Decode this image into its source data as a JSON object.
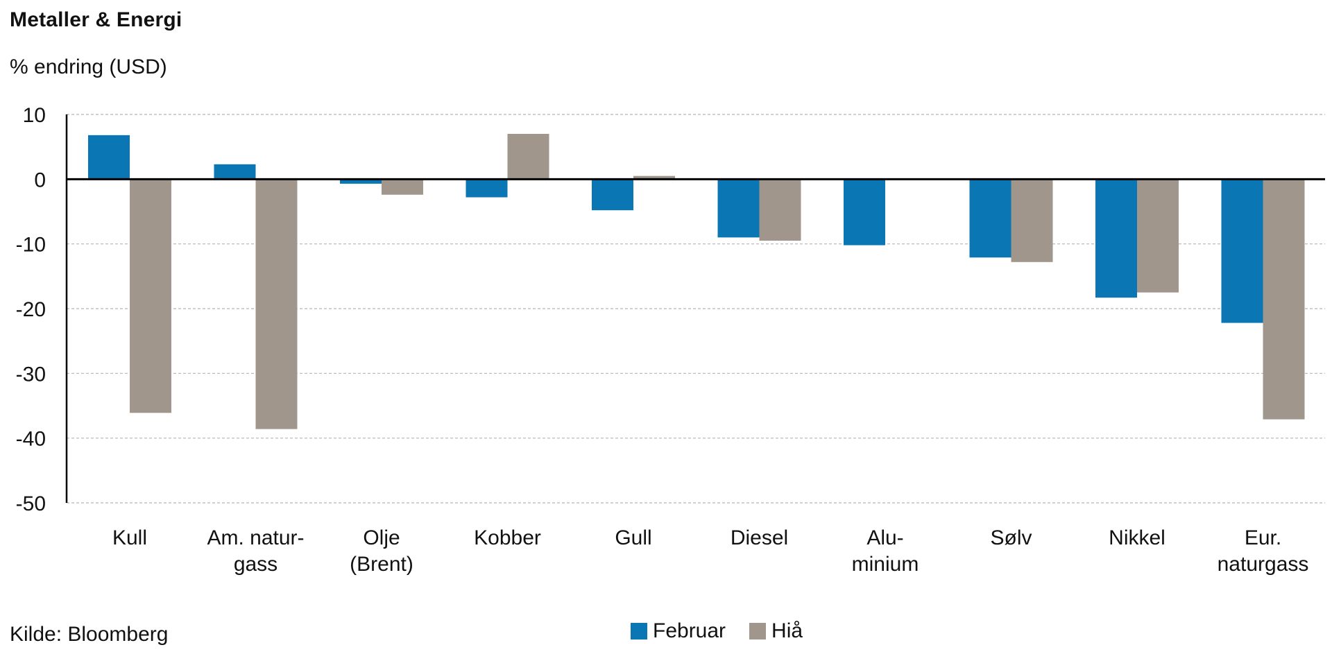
{
  "title": "Metaller & Energi",
  "subtitle": "% endring (USD)",
  "source": "Kilde: Bloomberg",
  "colors": {
    "februar": "#0a76b3",
    "hia": "#a0968c",
    "grid": "#b5b5b5",
    "axis": "#000000"
  },
  "legend": [
    {
      "name": "Februar",
      "color_key": "februar"
    },
    {
      "name": "Hiå",
      "color_key": "hia"
    }
  ],
  "chart_data": {
    "type": "bar",
    "title": "Metaller & Energi",
    "ylabel": "% endring (USD)",
    "xlabel": "",
    "ylim": [
      -50,
      10
    ],
    "yticks": [
      10,
      0,
      -10,
      -20,
      -30,
      -40,
      -50
    ],
    "grid": true,
    "legend_position": "bottom",
    "categories": [
      [
        "Kull"
      ],
      [
        "Am. natur-",
        "gass"
      ],
      [
        "Olje",
        "(Brent)"
      ],
      [
        "Kobber"
      ],
      [
        "Gull"
      ],
      [
        "Diesel"
      ],
      [
        "Alu-",
        "minium"
      ],
      [
        "Sølv"
      ],
      [
        "Nikkel"
      ],
      [
        "Eur.",
        "naturgass"
      ]
    ],
    "series": [
      {
        "name": "Februar",
        "values": [
          6.8,
          2.3,
          -0.7,
          -2.8,
          -4.8,
          -9.0,
          -10.2,
          -12.1,
          -18.3,
          -22.2
        ]
      },
      {
        "name": "Hiå",
        "values": [
          -36.1,
          -38.6,
          -2.4,
          7.0,
          0.5,
          -9.5,
          0.0,
          -12.8,
          -17.5,
          -37.1
        ]
      }
    ]
  }
}
